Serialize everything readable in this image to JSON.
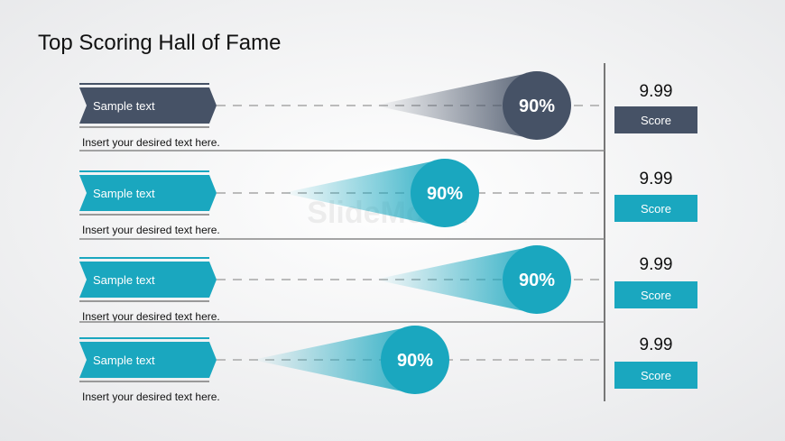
{
  "title": "Top Scoring Hall of Fame",
  "watermark": "SlideModel",
  "rows": [
    {
      "label": "Sample text",
      "description": "Insert your desired text here.",
      "percent": "90%",
      "score": "9.99",
      "button": "Score"
    },
    {
      "label": "Sample text",
      "description": "Insert your desired text here.",
      "percent": "90%",
      "score": "9.99",
      "button": "Score"
    },
    {
      "label": "Sample text",
      "description": "Insert your desired text here.",
      "percent": "90%",
      "score": "9.99",
      "button": "Score"
    },
    {
      "label": "Sample text",
      "description": "Insert your desired text here.",
      "percent": "90%",
      "score": "9.99",
      "button": "Score"
    }
  ]
}
